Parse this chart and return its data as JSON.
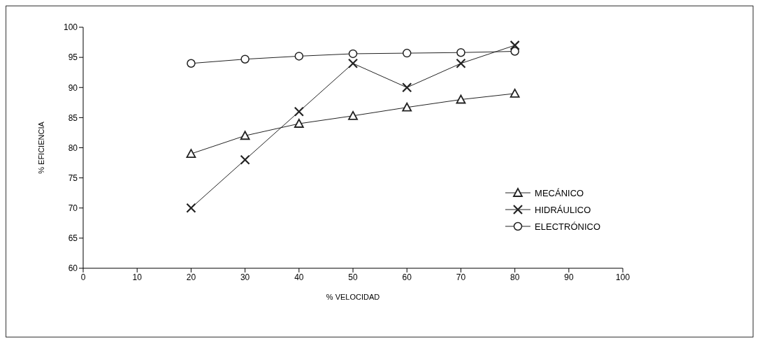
{
  "chart_data": {
    "type": "line",
    "xlabel": "% VELOCIDAD",
    "ylabel": "% EFICIENCIA",
    "x": [
      20,
      30,
      40,
      50,
      60,
      70,
      80
    ],
    "series": [
      {
        "name": "MECÁNICO",
        "color": "#222222",
        "marker": "triangle",
        "values": [
          79,
          82,
          84,
          85.3,
          86.7,
          88,
          89
        ]
      },
      {
        "name": "HIDRÁULICO",
        "color": "#222222",
        "marker": "cross",
        "values": [
          70,
          78,
          86,
          94,
          90,
          94,
          97
        ]
      },
      {
        "name": "ELECTRÓNICO",
        "color": "#222222",
        "marker": "circle",
        "values": [
          94,
          94.7,
          95.2,
          95.6,
          95.7,
          95.8,
          96
        ]
      }
    ],
    "xlim": [
      0,
      100
    ],
    "xticks": [
      0,
      10,
      20,
      30,
      40,
      50,
      60,
      70,
      80,
      90,
      100
    ],
    "ylim": [
      60,
      100
    ],
    "yticks": [
      60,
      65,
      70,
      75,
      80,
      85,
      90,
      95,
      100
    ],
    "grid": false,
    "legend": "right"
  }
}
